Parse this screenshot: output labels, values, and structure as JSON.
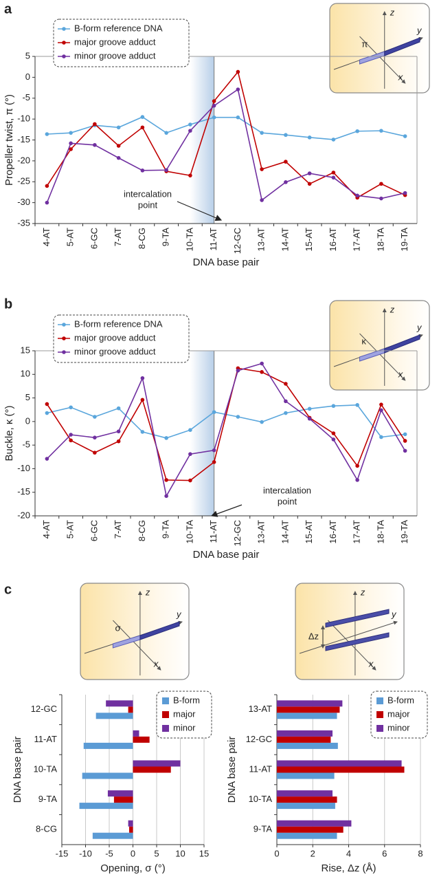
{
  "chart_data": [
    {
      "type": "line",
      "panel_label": "a",
      "x_label": "DNA base pair",
      "y_label": "Propeller twist, π (°)",
      "inset_labels": [
        "z",
        "y",
        "x",
        "π"
      ],
      "annotation": [
        "intercalation",
        "point"
      ],
      "categories": [
        "4-AT",
        "5-AT",
        "6-GC",
        "7-AT",
        "8-CG",
        "9-TA",
        "10-TA",
        "11-AT",
        "12-GC",
        "13-AT",
        "14-AT",
        "15-AT",
        "16-AT",
        "17-AT",
        "18-TA",
        "19-TA"
      ],
      "series": [
        {
          "name": "B-form reference DNA",
          "color": "#5aa6dc",
          "values": [
            -13.6,
            -13.3,
            -11.5,
            -12,
            -9.5,
            -13.3,
            -11.3,
            -9.6,
            -9.6,
            -13.3,
            -13.8,
            -14.4,
            -14.9,
            -12.9,
            -12.8,
            -14.1
          ]
        },
        {
          "name": "major groove adduct",
          "color": "#c00000",
          "values": [
            -26,
            -17.2,
            -11.2,
            -16.4,
            -12,
            -22.5,
            -23.5,
            -5.7,
            1.3,
            -22,
            -20.2,
            -25.5,
            -22.8,
            -28.8,
            -25.5,
            -28.2
          ]
        },
        {
          "name": "minor groove adduct",
          "color": "#7030a0",
          "values": [
            -30,
            -15.8,
            -16.2,
            -19.3,
            -22.3,
            -22.2,
            -12.8,
            -6.8,
            -2.9,
            -29.4,
            -25.1,
            -23,
            -24,
            -28.3,
            -29,
            -27.7
          ]
        }
      ],
      "ylim": [
        -35,
        5
      ],
      "yticks": [
        -35,
        -30,
        -25,
        -20,
        -15,
        -10,
        -5,
        0,
        5
      ],
      "grid": false,
      "legend": "top-left"
    },
    {
      "type": "line",
      "panel_label": "b",
      "x_label": "DNA base pair",
      "y_label": "Buckle, κ (°)",
      "inset_labels": [
        "z",
        "y",
        "x",
        "κ"
      ],
      "annotation": [
        "intercalation",
        "point"
      ],
      "categories": [
        "4-AT",
        "5-AT",
        "6-GC",
        "7-AT",
        "8-CG",
        "9-TA",
        "10-TA",
        "11-AT",
        "12-GC",
        "13-AT",
        "14-AT",
        "15-AT",
        "16-AT",
        "17-AT",
        "18-TA",
        "19-TA"
      ],
      "series": [
        {
          "name": "B-form reference DNA",
          "color": "#5aa6dc",
          "values": [
            1.8,
            3.0,
            1.0,
            2.8,
            -2.2,
            -3.5,
            -1.8,
            2.0,
            1.0,
            -0.1,
            1.8,
            2.7,
            3.3,
            3.5,
            -3.3,
            -2.7
          ]
        },
        {
          "name": "major groove adduct",
          "color": "#c00000",
          "values": [
            3.7,
            -4.0,
            -6.6,
            -4.2,
            4.6,
            -12.4,
            -12.5,
            -8.6,
            11.3,
            10.5,
            8.0,
            0.8,
            -2.5,
            -9.4,
            3.6,
            -4.1
          ]
        },
        {
          "name": "minor groove adduct",
          "color": "#7030a0",
          "values": [
            -7.9,
            -2.8,
            -3.4,
            -2.1,
            9.2,
            -15.8,
            -6.9,
            -6.1,
            10.8,
            12.3,
            4.3,
            0.6,
            -3.8,
            -12.4,
            2.4,
            -6.2
          ]
        }
      ],
      "ylim": [
        -20,
        15
      ],
      "yticks": [
        -20,
        -15,
        -10,
        -5,
        0,
        5,
        10,
        15
      ],
      "grid": false,
      "legend": "top-left"
    },
    {
      "type": "hbar",
      "panel_label": "c",
      "x_label": "Opening, σ (°)",
      "y_label": "DNA base pair",
      "inset_labels": [
        "z",
        "y",
        "x",
        "σ"
      ],
      "categories": [
        "12-GC",
        "11-AT",
        "10-TA",
        "9-TA",
        "8-CG"
      ],
      "series": [
        {
          "name": "B-form",
          "color": "#5b9bd5",
          "values": [
            -7.8,
            -10.4,
            -10.7,
            -11.3,
            -8.5
          ]
        },
        {
          "name": "major",
          "color": "#c00000",
          "values": [
            -1,
            3.5,
            8,
            -4,
            -0.8
          ]
        },
        {
          "name": "minor",
          "color": "#7030a0",
          "values": [
            -5.7,
            1.3,
            10,
            -5.3,
            -1
          ]
        }
      ],
      "xlim": [
        -15,
        15
      ],
      "xticks": [
        -15,
        -10,
        -5,
        0,
        5,
        10,
        15
      ],
      "grid": true,
      "legend": "top-right"
    },
    {
      "type": "hbar",
      "x_label": "Rise, Δz (Å)",
      "y_label": "DNA base pair",
      "inset_labels": [
        "z",
        "y",
        "x",
        "Δz"
      ],
      "categories": [
        "13-AT",
        "12-GC",
        "11-AT",
        "10-TA",
        "9-TA"
      ],
      "series": [
        {
          "name": "B-form",
          "color": "#5b9bd5",
          "values": [
            3.35,
            3.4,
            3.2,
            3.25,
            3.35
          ]
        },
        {
          "name": "major",
          "color": "#c00000",
          "values": [
            3.5,
            3.0,
            7.1,
            3.35,
            3.7
          ]
        },
        {
          "name": "minor",
          "color": "#7030a0",
          "values": [
            3.65,
            3.1,
            6.95,
            3.1,
            4.15
          ]
        }
      ],
      "xlim": [
        0,
        8
      ],
      "xticks": [
        0,
        2,
        4,
        6,
        8
      ],
      "grid": true,
      "legend": "top-right"
    }
  ]
}
